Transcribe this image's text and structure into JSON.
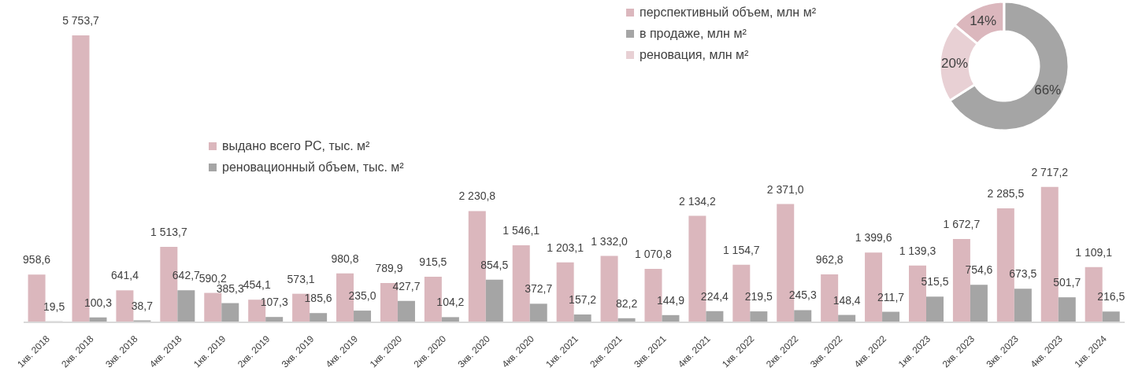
{
  "chart_data": [
    {
      "type": "bar",
      "categories": [
        "1кв. 2018",
        "2кв. 2018",
        "3кв. 2018",
        "4кв. 2018",
        "1кв. 2019",
        "2кв. 2019",
        "3кв. 2019",
        "4кв. 2019",
        "1кв. 2020",
        "2кв. 2020",
        "3кв. 2020",
        "4кв. 2020",
        "1кв. 2021",
        "2кв. 2021",
        "3кв. 2021",
        "4кв. 2021",
        "1кв. 2022",
        "2кв. 2022",
        "3кв. 2022",
        "4кв. 2022",
        "1кв. 2023",
        "2кв. 2023",
        "3кв. 2023",
        "4кв. 2023",
        "1кв. 2024"
      ],
      "series": [
        {
          "name": "выдано всего РС, тыс. м²",
          "color": "#dbb7bd",
          "values": [
            958.6,
            5753.7,
            641.4,
            1513.7,
            590.2,
            454.1,
            573.1,
            980.8,
            789.9,
            915.5,
            2230.8,
            1546.1,
            1203.1,
            1332.0,
            1070.8,
            2134.2,
            1154.7,
            2371.0,
            962.8,
            1399.6,
            1139.3,
            1672.7,
            2285.5,
            2717.2,
            1109.1
          ],
          "value_labels": [
            "958,6",
            "5 753,7",
            "641,4",
            "1 513,7",
            "590,2",
            "454,1",
            "573,1",
            "980,8",
            "789,9",
            "915,5",
            "2 230,8",
            "1 546,1",
            "1 203,1",
            "1 332,0",
            "1 070,8",
            "2 134,2",
            "1 154,7",
            "2 371,0",
            "962,8",
            "1 399,6",
            "1 139,3",
            "1 672,7",
            "2 285,5",
            "2 717,2",
            "1 109,1"
          ]
        },
        {
          "name": "реновационный объем, тыс. м²",
          "color": "#a5a5a5",
          "values": [
            19.5,
            100.3,
            38.7,
            642.7,
            385.3,
            107.3,
            185.6,
            235.0,
            427.7,
            104.2,
            854.5,
            372.7,
            157.2,
            82.2,
            144.9,
            224.4,
            219.5,
            245.3,
            148.4,
            211.7,
            515.5,
            754.6,
            673.5,
            501.7,
            216.5
          ],
          "value_labels": [
            "19,5",
            "100,3",
            "38,7",
            "642,7",
            "385,3",
            "107,3",
            "185,6",
            "235,0",
            "427,7",
            "104,2",
            "854,5",
            "372,7",
            "157,2",
            "82,2",
            "144,9",
            "224,4",
            "219,5",
            "245,3",
            "148,4",
            "211,7",
            "515,5",
            "754,6",
            "673,5",
            "501,7",
            "216,5"
          ]
        }
      ],
      "tick_labels": "x",
      "legend": "top"
    },
    {
      "type": "donut",
      "categories": [
        "перспективный объем, млн м²",
        "в продаже, млн м²",
        "реновация, млн м²"
      ],
      "values": [
        14,
        66,
        20
      ],
      "value_labels": [
        "14%",
        "66%",
        "20%"
      ],
      "colors": [
        "#dbb7bd",
        "#a5a5a5",
        "#e8d0d4"
      ],
      "legend": "left"
    }
  ]
}
